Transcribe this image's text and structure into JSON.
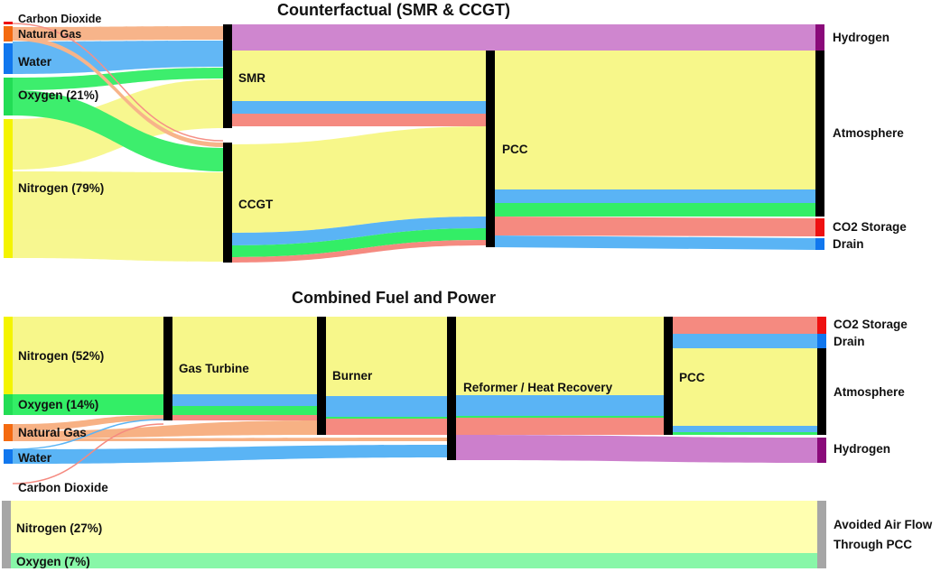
{
  "panels": [
    {
      "title": "Counterfactual (SMR & CCGT)",
      "nodes": {
        "co2_in": "Carbon Dioxide",
        "ng": "Natural Gas",
        "water": "Water",
        "o2": "Oxygen (21%)",
        "n2": "Nitrogen (79%)",
        "smr": "SMR",
        "ccgt": "CCGT",
        "pcc": "PCC",
        "h2": "Hydrogen",
        "atm": "Atmosphere",
        "co2s": "CO2 Storage",
        "drain": "Drain"
      }
    },
    {
      "title": "Combined Fuel and Power",
      "nodes": {
        "n2": "Nitrogen (52%)",
        "o2": "Oxygen (14%)",
        "ng": "Natural Gas",
        "water": "Water",
        "co2_in": "Carbon Dioxide",
        "gt": "Gas Turbine",
        "burner": "Burner",
        "reformer": "Reformer / Heat Recovery",
        "pcc": "PCC",
        "co2s": "CO2 Storage",
        "drain": "Drain",
        "atm": "Atmosphere",
        "h2": "Hydrogen"
      }
    },
    {
      "nodes": {
        "n2": "Nitrogen (27%)",
        "o2": "Oxygen (7%)",
        "avoided_line1": "Avoided Air Flow",
        "avoided_line2": "Through PCC"
      }
    }
  ],
  "colors": {
    "nitrogen_flow": "#f7f78a",
    "oxygen_flow": "#33ee66",
    "water_flow": "#5ab4f5",
    "co2_flow": "#f58a80",
    "ng_flow": "#f7b184",
    "hydrogen_flow": "#cc7fcc",
    "avoided_nitrogen": "#ffffb0",
    "avoided_oxygen": "#88f7a8",
    "node_process": "#000000",
    "node_nitrogen": "#f4f400",
    "node_oxygen": "#22dd55",
    "node_water": "#1177ee",
    "node_ng": "#f46a10",
    "node_hydrogen": "#8a0a7a",
    "node_co2": "#ee1111",
    "node_avoided": "#a6a6a6"
  }
}
